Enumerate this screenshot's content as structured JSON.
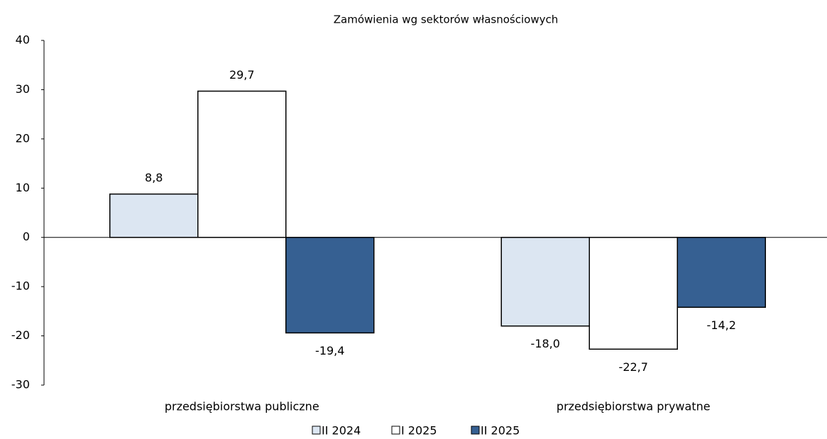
{
  "chart_data": {
    "type": "bar",
    "title": "Zamówienia wg sektorów własnościowych",
    "categories": [
      "przedsiębiorstwa publiczne",
      "przedsiębiorstwa prywatne"
    ],
    "series": [
      {
        "name": "II 2024",
        "color": "#dce6f2",
        "values": [
          8.8,
          -18.0
        ],
        "value_labels": [
          "8,8",
          "-18,0"
        ]
      },
      {
        "name": "I 2025",
        "color": "#ffffff",
        "values": [
          29.7,
          -22.7
        ],
        "value_labels": [
          "29,7",
          "-22,7"
        ]
      },
      {
        "name": "II 2025",
        "color": "#366092",
        "values": [
          -19.4,
          -14.2
        ],
        "value_labels": [
          "-19,4",
          "-14,2"
        ]
      }
    ],
    "ylim": [
      -30,
      40
    ],
    "yticks": [
      -30,
      -20,
      -10,
      0,
      10,
      20,
      30,
      40
    ],
    "grid": false,
    "legend": "bottom"
  }
}
